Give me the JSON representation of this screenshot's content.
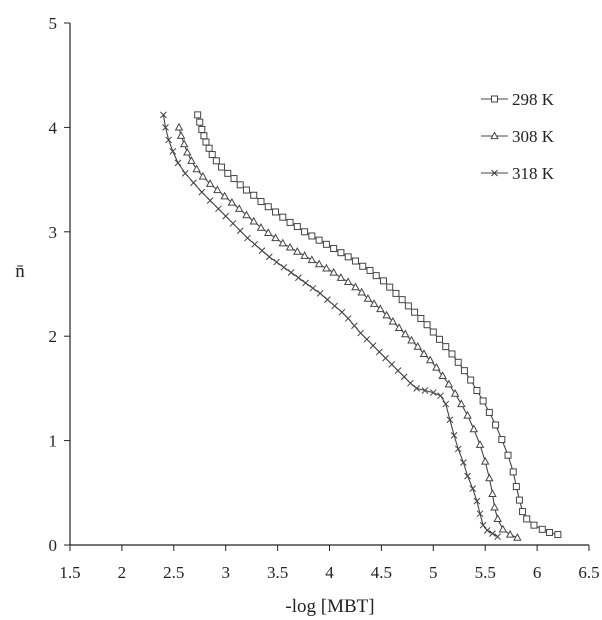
{
  "chart_data": {
    "type": "scatter",
    "xlabel": "-log [MBT]",
    "ylabel": "n̄",
    "xlim": [
      1.5,
      6.5
    ],
    "ylim": [
      0,
      5
    ],
    "x_ticks": [
      "1.5",
      "2",
      "2.5",
      "3",
      "3.5",
      "4",
      "4.5",
      "5",
      "5.5",
      "6",
      "6.5"
    ],
    "y_ticks": [
      "0",
      "1",
      "2",
      "3",
      "4",
      "5"
    ],
    "grid": false,
    "legend_position": "top-right",
    "series": [
      {
        "name": "298 K",
        "marker": "square",
        "color": "#444444",
        "points": [
          [
            2.73,
            4.12
          ],
          [
            2.75,
            4.05
          ],
          [
            2.77,
            3.98
          ],
          [
            2.79,
            3.92
          ],
          [
            2.81,
            3.86
          ],
          [
            2.84,
            3.8
          ],
          [
            2.87,
            3.74
          ],
          [
            2.91,
            3.68
          ],
          [
            2.96,
            3.62
          ],
          [
            3.02,
            3.56
          ],
          [
            3.08,
            3.51
          ],
          [
            3.14,
            3.45
          ],
          [
            3.2,
            3.4
          ],
          [
            3.27,
            3.35
          ],
          [
            3.34,
            3.29
          ],
          [
            3.41,
            3.24
          ],
          [
            3.48,
            3.19
          ],
          [
            3.55,
            3.14
          ],
          [
            3.62,
            3.09
          ],
          [
            3.69,
            3.05
          ],
          [
            3.76,
            3.0
          ],
          [
            3.83,
            2.96
          ],
          [
            3.9,
            2.92
          ],
          [
            3.97,
            2.88
          ],
          [
            4.04,
            2.84
          ],
          [
            4.11,
            2.8
          ],
          [
            4.18,
            2.76
          ],
          [
            4.25,
            2.72
          ],
          [
            4.32,
            2.67
          ],
          [
            4.39,
            2.63
          ],
          [
            4.45,
            2.58
          ],
          [
            4.52,
            2.53
          ],
          [
            4.58,
            2.47
          ],
          [
            4.64,
            2.41
          ],
          [
            4.7,
            2.35
          ],
          [
            4.76,
            2.29
          ],
          [
            4.82,
            2.23
          ],
          [
            4.88,
            2.17
          ],
          [
            4.94,
            2.11
          ],
          [
            5.0,
            2.04
          ],
          [
            5.06,
            1.97
          ],
          [
            5.12,
            1.9
          ],
          [
            5.18,
            1.83
          ],
          [
            5.24,
            1.75
          ],
          [
            5.3,
            1.67
          ],
          [
            5.36,
            1.58
          ],
          [
            5.42,
            1.48
          ],
          [
            5.48,
            1.38
          ],
          [
            5.54,
            1.27
          ],
          [
            5.6,
            1.15
          ],
          [
            5.66,
            1.01
          ],
          [
            5.72,
            0.86
          ],
          [
            5.77,
            0.7
          ],
          [
            5.8,
            0.56
          ],
          [
            5.83,
            0.43
          ],
          [
            5.86,
            0.32
          ],
          [
            5.9,
            0.25
          ],
          [
            5.97,
            0.19
          ],
          [
            6.05,
            0.15
          ],
          [
            6.12,
            0.12
          ],
          [
            6.2,
            0.1
          ]
        ]
      },
      {
        "name": "308 K",
        "marker": "triangle",
        "color": "#444444",
        "points": [
          [
            2.55,
            4.0
          ],
          [
            2.57,
            3.92
          ],
          [
            2.6,
            3.84
          ],
          [
            2.63,
            3.76
          ],
          [
            2.67,
            3.68
          ],
          [
            2.72,
            3.6
          ],
          [
            2.78,
            3.53
          ],
          [
            2.85,
            3.46
          ],
          [
            2.92,
            3.4
          ],
          [
            2.99,
            3.34
          ],
          [
            3.06,
            3.28
          ],
          [
            3.13,
            3.22
          ],
          [
            3.2,
            3.16
          ],
          [
            3.27,
            3.1
          ],
          [
            3.34,
            3.04
          ],
          [
            3.41,
            2.99
          ],
          [
            3.48,
            2.94
          ],
          [
            3.55,
            2.89
          ],
          [
            3.62,
            2.85
          ],
          [
            3.69,
            2.81
          ],
          [
            3.76,
            2.77
          ],
          [
            3.83,
            2.73
          ],
          [
            3.9,
            2.69
          ],
          [
            3.97,
            2.65
          ],
          [
            4.04,
            2.61
          ],
          [
            4.11,
            2.56
          ],
          [
            4.18,
            2.52
          ],
          [
            4.25,
            2.47
          ],
          [
            4.31,
            2.42
          ],
          [
            4.37,
            2.36
          ],
          [
            4.43,
            2.31
          ],
          [
            4.49,
            2.26
          ],
          [
            4.55,
            2.2
          ],
          [
            4.61,
            2.14
          ],
          [
            4.67,
            2.08
          ],
          [
            4.73,
            2.02
          ],
          [
            4.79,
            1.96
          ],
          [
            4.85,
            1.9
          ],
          [
            4.91,
            1.83
          ],
          [
            4.97,
            1.77
          ],
          [
            5.03,
            1.7
          ],
          [
            5.09,
            1.62
          ],
          [
            5.15,
            1.54
          ],
          [
            5.21,
            1.45
          ],
          [
            5.27,
            1.35
          ],
          [
            5.33,
            1.24
          ],
          [
            5.39,
            1.11
          ],
          [
            5.45,
            0.96
          ],
          [
            5.5,
            0.8
          ],
          [
            5.54,
            0.64
          ],
          [
            5.57,
            0.49
          ],
          [
            5.59,
            0.36
          ],
          [
            5.62,
            0.25
          ],
          [
            5.67,
            0.15
          ],
          [
            5.74,
            0.1
          ],
          [
            5.81,
            0.07
          ]
        ]
      },
      {
        "name": "318 K",
        "marker": "x",
        "color": "#444444",
        "points": [
          [
            2.4,
            4.12
          ],
          [
            2.42,
            4.0
          ],
          [
            2.45,
            3.88
          ],
          [
            2.49,
            3.77
          ],
          [
            2.54,
            3.66
          ],
          [
            2.61,
            3.56
          ],
          [
            2.69,
            3.47
          ],
          [
            2.77,
            3.38
          ],
          [
            2.85,
            3.3
          ],
          [
            2.93,
            3.22
          ],
          [
            3.0,
            3.15
          ],
          [
            3.07,
            3.08
          ],
          [
            3.14,
            3.01
          ],
          [
            3.21,
            2.94
          ],
          [
            3.28,
            2.88
          ],
          [
            3.35,
            2.82
          ],
          [
            3.42,
            2.76
          ],
          [
            3.49,
            2.71
          ],
          [
            3.56,
            2.66
          ],
          [
            3.63,
            2.61
          ],
          [
            3.7,
            2.56
          ],
          [
            3.77,
            2.51
          ],
          [
            3.84,
            2.46
          ],
          [
            3.91,
            2.41
          ],
          [
            3.98,
            2.35
          ],
          [
            4.05,
            2.29
          ],
          [
            4.12,
            2.23
          ],
          [
            4.18,
            2.17
          ],
          [
            4.24,
            2.1
          ],
          [
            4.3,
            2.03
          ],
          [
            4.36,
            1.97
          ],
          [
            4.42,
            1.91
          ],
          [
            4.48,
            1.85
          ],
          [
            4.54,
            1.79
          ],
          [
            4.6,
            1.73
          ],
          [
            4.66,
            1.67
          ],
          [
            4.72,
            1.61
          ],
          [
            4.78,
            1.55
          ],
          [
            4.84,
            1.5
          ],
          [
            4.92,
            1.48
          ],
          [
            5.0,
            1.46
          ],
          [
            5.07,
            1.43
          ],
          [
            5.12,
            1.35
          ],
          [
            5.16,
            1.2
          ],
          [
            5.2,
            1.05
          ],
          [
            5.24,
            0.92
          ],
          [
            5.29,
            0.79
          ],
          [
            5.33,
            0.66
          ],
          [
            5.38,
            0.54
          ],
          [
            5.42,
            0.42
          ],
          [
            5.45,
            0.3
          ],
          [
            5.48,
            0.19
          ],
          [
            5.52,
            0.14
          ],
          [
            5.57,
            0.11
          ],
          [
            5.62,
            0.08
          ]
        ]
      }
    ]
  }
}
